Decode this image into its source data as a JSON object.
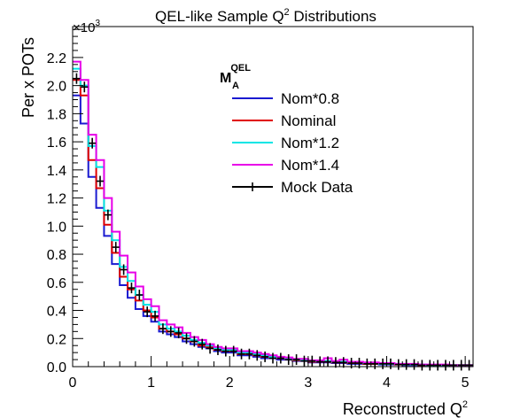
{
  "chart_data": {
    "type": "line",
    "title_main": "QEL-like Sample Q",
    "title_sup": "2",
    "title_tail": " Distributions",
    "xlabel_main": "Reconstructed Q",
    "xlabel_sup": "2",
    "ylabel": "Per x POTs",
    "y_multiplier_base": "×10",
    "y_multiplier_exp": "3",
    "legend_header_main": "M",
    "legend_header_sup": "QEL",
    "legend_header_sub": "A",
    "legend_position": "top-right",
    "grid": false,
    "xlim": [
      0,
      5.1
    ],
    "ylim": [
      0,
      2.42
    ],
    "x_ticks": [
      "0",
      "1",
      "2",
      "3",
      "4",
      "5"
    ],
    "y_ticks": [
      "0.0",
      "0.2",
      "0.4",
      "0.6",
      "0.8",
      "1.0",
      "1.2",
      "1.4",
      "1.6",
      "1.8",
      "2.0",
      "2.2"
    ],
    "bin_width": 0.1,
    "bin_centers": [
      0.05,
      0.15,
      0.25,
      0.35,
      0.45,
      0.55,
      0.65,
      0.75,
      0.85,
      0.95,
      1.05,
      1.15,
      1.25,
      1.35,
      1.45,
      1.55,
      1.65,
      1.75,
      1.85,
      1.95,
      2.05,
      2.15,
      2.25,
      2.35,
      2.45,
      2.55,
      2.65,
      2.75,
      2.85,
      2.95,
      3.05,
      3.15,
      3.25,
      3.35,
      3.45,
      3.55,
      3.65,
      3.75,
      3.85,
      3.95,
      4.05,
      4.15,
      4.25,
      4.35,
      4.45,
      4.55,
      4.65,
      4.75,
      4.85,
      4.95,
      5.05
    ],
    "series": [
      {
        "name": "Nom*0.8",
        "color": "#1a1ad0",
        "values": [
          1.93,
          1.73,
          1.35,
          1.13,
          0.93,
          0.73,
          0.58,
          0.49,
          0.41,
          0.36,
          0.32,
          0.25,
          0.23,
          0.21,
          0.18,
          0.16,
          0.14,
          0.13,
          0.11,
          0.1,
          0.1,
          0.08,
          0.08,
          0.07,
          0.06,
          0.06,
          0.05,
          0.05,
          0.04,
          0.04,
          0.03,
          0.03,
          0.03,
          0.025,
          0.025,
          0.02,
          0.02,
          0.02,
          0.02,
          0.015,
          0.015,
          0.015,
          0.01,
          0.01,
          0.01,
          0.01,
          0.01,
          0.01,
          0.01,
          0.01,
          0.01
        ]
      },
      {
        "name": "Nominal",
        "color": "#e00000",
        "values": [
          2.04,
          1.93,
          1.47,
          1.27,
          1.01,
          0.81,
          0.64,
          0.55,
          0.47,
          0.4,
          0.35,
          0.27,
          0.25,
          0.23,
          0.2,
          0.18,
          0.15,
          0.14,
          0.12,
          0.11,
          0.11,
          0.09,
          0.09,
          0.08,
          0.07,
          0.065,
          0.06,
          0.055,
          0.045,
          0.045,
          0.035,
          0.035,
          0.035,
          0.03,
          0.03,
          0.025,
          0.025,
          0.02,
          0.02,
          0.02,
          0.02,
          0.015,
          0.015,
          0.015,
          0.01,
          0.01,
          0.01,
          0.01,
          0.01,
          0.01,
          0.01
        ]
      },
      {
        "name": "Nom*1.2",
        "color": "#00e5e5",
        "values": [
          2.12,
          2.0,
          1.57,
          1.42,
          1.11,
          0.9,
          0.71,
          0.61,
          0.51,
          0.44,
          0.39,
          0.3,
          0.27,
          0.25,
          0.22,
          0.19,
          0.17,
          0.15,
          0.13,
          0.12,
          0.12,
          0.1,
          0.1,
          0.09,
          0.08,
          0.07,
          0.065,
          0.06,
          0.05,
          0.05,
          0.04,
          0.04,
          0.04,
          0.035,
          0.035,
          0.03,
          0.03,
          0.025,
          0.025,
          0.02,
          0.02,
          0.02,
          0.015,
          0.015,
          0.015,
          0.01,
          0.01,
          0.01,
          0.01,
          0.01,
          0.01
        ]
      },
      {
        "name": "Nom*1.4",
        "color": "#e800e8",
        "values": [
          2.17,
          2.04,
          1.65,
          1.47,
          1.2,
          0.96,
          0.79,
          0.67,
          0.57,
          0.48,
          0.43,
          0.33,
          0.3,
          0.28,
          0.24,
          0.21,
          0.19,
          0.16,
          0.14,
          0.13,
          0.13,
          0.11,
          0.11,
          0.1,
          0.09,
          0.08,
          0.07,
          0.065,
          0.055,
          0.055,
          0.045,
          0.045,
          0.06,
          0.04,
          0.05,
          0.035,
          0.035,
          0.03,
          0.03,
          0.025,
          0.025,
          0.02,
          0.02,
          0.02,
          0.015,
          0.015,
          0.015,
          0.015,
          0.01,
          0.01,
          0.01
        ]
      },
      {
        "name": "Mock Data",
        "color": "#000000",
        "markers": true,
        "values": [
          2.05,
          1.99,
          1.59,
          1.32,
          1.08,
          0.85,
          0.69,
          0.56,
          0.51,
          0.39,
          0.36,
          0.27,
          0.25,
          0.24,
          0.2,
          0.18,
          0.16,
          0.13,
          0.12,
          0.11,
          0.11,
          0.09,
          0.09,
          0.08,
          0.07,
          0.06,
          0.06,
          0.05,
          0.05,
          0.04,
          0.04,
          0.035,
          0.035,
          0.03,
          0.03,
          0.025,
          0.025,
          0.02,
          0.02,
          0.02,
          0.02,
          0.015,
          0.015,
          0.015,
          0.01,
          0.01,
          0.01,
          0.01,
          0.01,
          0.01,
          0.01
        ]
      }
    ]
  }
}
